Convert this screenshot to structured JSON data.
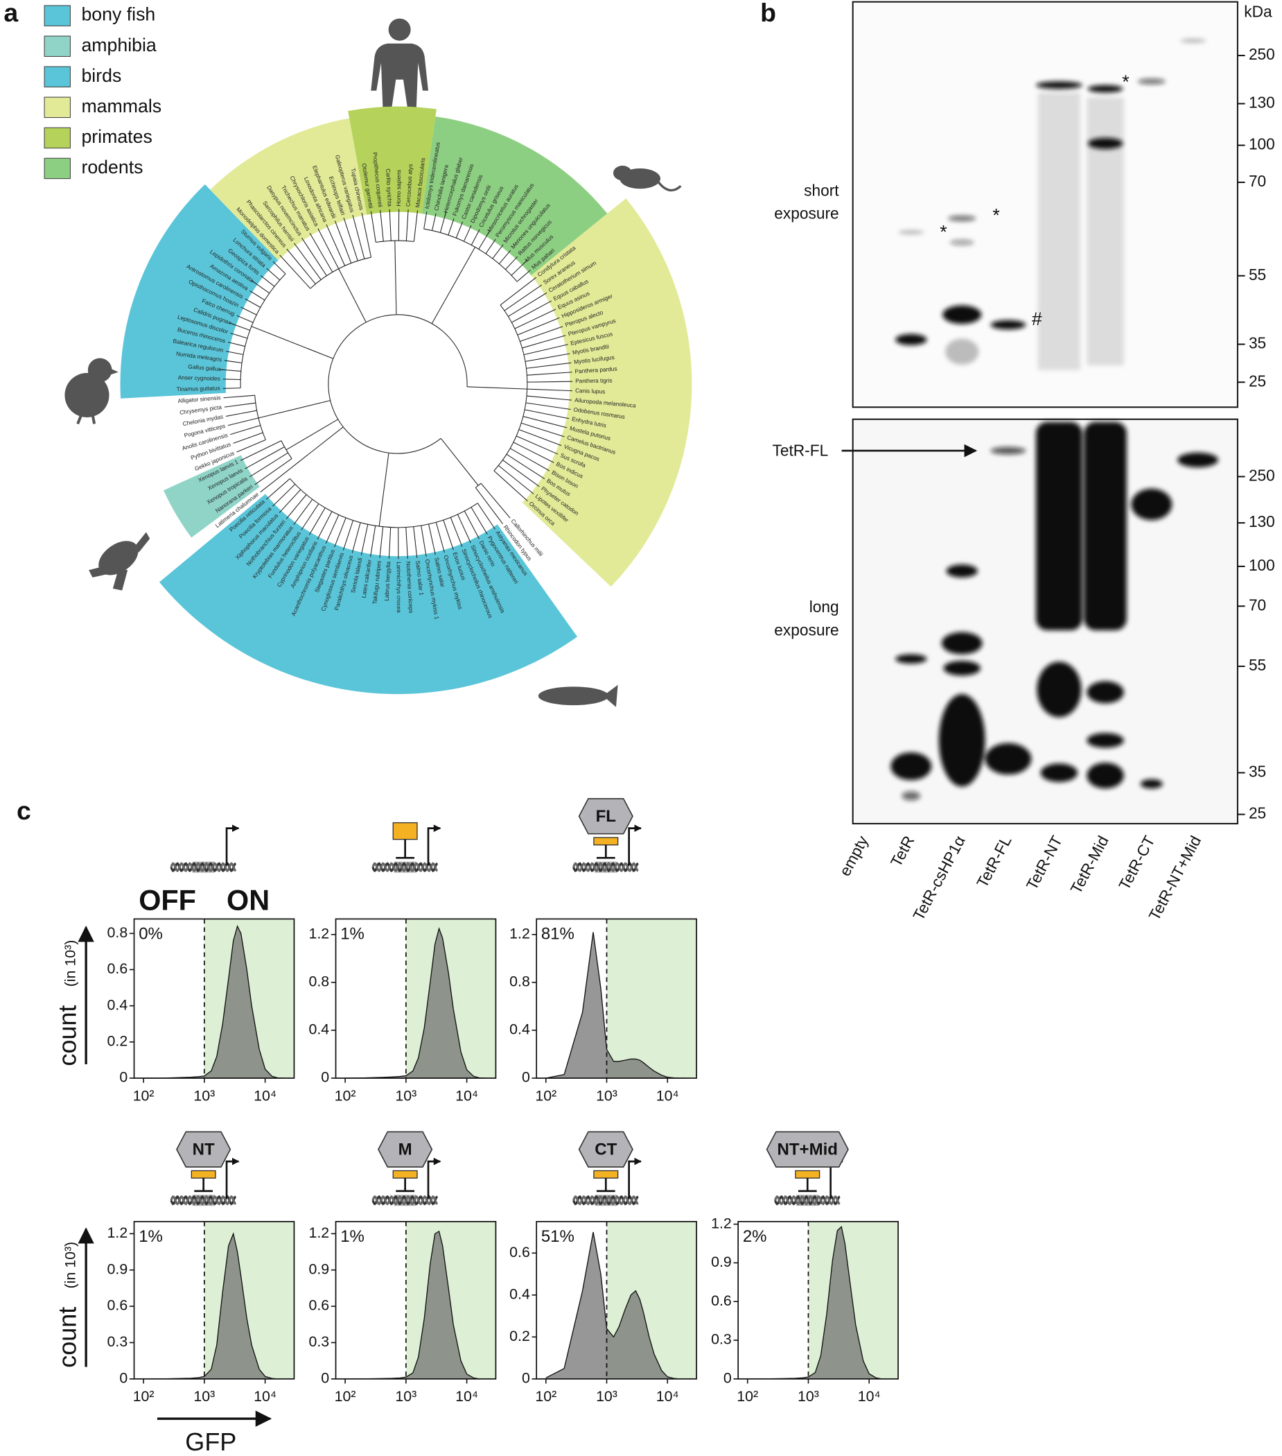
{
  "panel_labels": [
    "a",
    "b",
    "c"
  ],
  "tree": {
    "legend": [
      {
        "name": "bony fish",
        "color": "#5ac5d8"
      },
      {
        "name": "amphibia",
        "color": "#8fd4c7"
      },
      {
        "name": "birds",
        "color": "#5ac5d8"
      },
      {
        "name": "mammals",
        "color": "#e2ea97"
      },
      {
        "name": "primates",
        "color": "#b5d35a"
      },
      {
        "name": "rodents",
        "color": "#8dcf82"
      }
    ],
    "sections": [
      {
        "leaves": [
          "Callorhinchus milii",
          "Rhincodon typus"
        ]
      },
      {
        "clade": "bony fish",
        "leaves": [
          "Astyanax mexicanus",
          "Pygocentrus nattereri",
          "Danio rerio",
          "Sinocyclocheilus anshuiensis",
          "Sinocyclocheilus rhinocerous",
          "Esox lucius",
          "Oncorhynchus mykiss",
          "Salmo salar",
          "Oncorhynchus mykiss 1",
          "Salmo salar 1",
          "Notothenia coriiceps",
          "Larimichthys crocea",
          "Labrus bergylta",
          "Takifugu rubripes",
          "Lates calcarifer",
          "Seriola lalandi",
          "Paralichthys olivaceus",
          "Cynoglossus semilaevis",
          "Stegastes partitus",
          "Acanthochromis polyacanthus",
          "Amphiprion ocellaris",
          "Cyprinodon variegatus",
          "Fundulus heteroclitus",
          "Kryptolebias marmoratus",
          "Nothobranchius furzeri",
          "Xiphophorus maculatus",
          "Poecilia formosa",
          "Poecilia reticulata"
        ]
      },
      {
        "leaves": [
          "Latimeria chalumnae"
        ]
      },
      {
        "clade": "amphibia",
        "leaves": [
          "Nanorana parkeri",
          "Xenopus tropicalis",
          "Xenopus laevis",
          "Xenopus laevis 1"
        ]
      },
      {
        "leaves": [
          "Gekko japonicus",
          "Python bivittatus",
          "Anolis carolinensis",
          "Pogona vitticeps",
          "Chelonia mydas",
          "Chrysemys picta",
          "Alligator sinensis"
        ]
      },
      {
        "clade": "birds",
        "leaves": [
          "Tinamus guttatus",
          "Anser cygnoides",
          "Gallus gallus",
          "Numida meleagris",
          "Balearica regulorum",
          "Buceros rhinoceros",
          "Leptosomus discolor",
          "Calidris pugnax",
          "Falco cherrug",
          "Opisthocomus hoazin",
          "Antrostomus carolinensis",
          "Amazona aestiva",
          "Lepidothrix coronata",
          "Geospiza fortis",
          "Lonchura striata",
          "Sturnus vulgaris"
        ]
      },
      {
        "clade": "mammals",
        "leaves": [
          "Monodelphis domestica",
          "Phascolarctos cinereus",
          "Sarcophilus harrisii",
          "Dasypus novemcinctus",
          "Trichechus manatus",
          "Chrysochloris asiatica",
          "Loxodonta africana",
          "Elephantulus edwardii",
          "Echinops telfairi",
          "Galeopterus variegatus",
          "Tupaia chinensis"
        ]
      },
      {
        "clade": "primates",
        "leaves": [
          "Otolemur garnettii",
          "Propithecus coquereli",
          "Carlito syrichta",
          "Homo sapiens",
          "Cercocebus atys",
          "Macaca fascicularis"
        ]
      },
      {
        "clade": "rodents",
        "leaves": [
          "Ictidomys tridecemlineatus",
          "Chinchilla lanigera",
          "Heterocephalus glaber",
          "Fukomys damarensis",
          "Castor canadensis",
          "Dipodomys ordii",
          "Cricetulus griseus",
          "Mesocricetus auratus",
          "Peromyscus maniculatus",
          "Microtus ochrogaster",
          "Meriones unguiculatus",
          "Rattus norvegicus",
          "Mus musculus",
          "Mus pahari"
        ]
      },
      {
        "clade": "mammals",
        "leaves": [
          "Condylura cristata",
          "Sorex araneus",
          "Ceratotherium simum",
          "Equus caballus",
          "Equus asinus",
          "Hipposideros armiger",
          "Pteropus alecto",
          "Pteropus vampyrus",
          "Eptesicus fuscus",
          "Myotis brandtii",
          "Myotis lucifugus",
          "Panthera pardus",
          "Panthera tigris",
          "Canis lupus",
          "Ailuropoda melanoleuca",
          "Odobenus rosmarus",
          "Enhydra lutris",
          "Mustela putorius",
          "Camelus bactrianus",
          "Vicugna pacos",
          "Sus scrofa",
          "Bos indicus",
          "Bison bison",
          "Bos mutus",
          "Physeter catodon",
          "Lipotes vexillifer",
          "Orcinus orca"
        ]
      }
    ]
  },
  "blot": {
    "unit": "kDa",
    "lanes": [
      "empty",
      "TetR",
      "TetR-csHP1α",
      "TetR-FL",
      "TetR-NT",
      "TetR-Mid",
      "TetR-CT",
      "TetR-NT+Mid"
    ],
    "exposures": [
      {
        "label": [
          "short",
          "exposure"
        ],
        "markers": [
          250,
          130,
          100,
          70,
          55,
          35,
          25
        ]
      },
      {
        "label": [
          "long",
          "exposure"
        ],
        "markers": [
          250,
          130,
          100,
          70,
          55,
          35,
          25
        ]
      }
    ],
    "arrow_label": "TetR-FL",
    "annotations": [
      "*",
      "*",
      "#",
      "*"
    ]
  },
  "c_labels": {
    "states": [
      "OFF",
      "ON"
    ],
    "ylabel": "count",
    "ylabel_unit": "(in 10³)",
    "xlabel": "GFP"
  },
  "chart_data": [
    {
      "type": "area",
      "xscale": "log",
      "color": "#6f6f6f",
      "shade_color": "#ddf0d5",
      "gate": 1000,
      "annotation": "0%",
      "x": [
        100,
        200,
        400,
        600,
        800,
        1000,
        1300,
        1600,
        2000,
        2500,
        3000,
        3500,
        4000,
        5000,
        6000,
        8000,
        10000,
        13000,
        16000,
        20000
      ],
      "values": [
        0,
        0,
        0.003,
        0.005,
        0.008,
        0.012,
        0.04,
        0.12,
        0.3,
        0.55,
        0.76,
        0.84,
        0.8,
        0.6,
        0.4,
        0.16,
        0.05,
        0.01,
        0.002,
        0
      ],
      "xlim": [
        70,
        30000
      ],
      "xticks": [
        {
          "value": 100,
          "label": "10²"
        },
        {
          "value": 1000,
          "label": "10³"
        },
        {
          "value": 10000,
          "label": "10⁴"
        }
      ],
      "ylim": [
        0,
        0.88
      ],
      "yticks": [
        0,
        0.2,
        0.4,
        0.6,
        0.8
      ]
    },
    {
      "type": "area",
      "xscale": "log",
      "color": "#6f6f6f",
      "shade_color": "#ddf0d5",
      "gate": 1000,
      "annotation": "1%",
      "tetr": true,
      "x": [
        100,
        200,
        400,
        600,
        800,
        1000,
        1300,
        1600,
        2000,
        2500,
        3000,
        3500,
        4000,
        5000,
        6000,
        8000,
        10000,
        13000,
        16000,
        20000
      ],
      "values": [
        0,
        0.002,
        0.006,
        0.01,
        0.014,
        0.02,
        0.06,
        0.17,
        0.42,
        0.8,
        1.12,
        1.25,
        1.17,
        0.88,
        0.58,
        0.22,
        0.07,
        0.015,
        0.003,
        0
      ],
      "xlim": [
        70,
        30000
      ],
      "xticks": [
        {
          "value": 100,
          "label": "10²"
        },
        {
          "value": 1000,
          "label": "10³"
        },
        {
          "value": 10000,
          "label": "10⁴"
        }
      ],
      "ylim": [
        0,
        1.33
      ],
      "yticks": [
        0,
        0.4,
        0.8,
        1.2
      ]
    },
    {
      "type": "area",
      "xscale": "log",
      "color": "#6f6f6f",
      "shade_color": "#ddf0d5",
      "gate": 1000,
      "annotation": "81%",
      "tetr": true,
      "construct": "FL",
      "x": [
        100,
        200,
        400,
        600,
        800,
        1000,
        1300,
        1600,
        2000,
        2500,
        3000,
        3500,
        4000,
        5000,
        6000,
        8000,
        10000,
        13000,
        16000,
        20000
      ],
      "values": [
        0,
        0.03,
        0.55,
        1.22,
        0.75,
        0.24,
        0.14,
        0.14,
        0.15,
        0.16,
        0.16,
        0.15,
        0.13,
        0.09,
        0.06,
        0.025,
        0.008,
        0.002,
        0,
        0
      ],
      "xlim": [
        70,
        30000
      ],
      "xticks": [
        {
          "value": 100,
          "label": "10²"
        },
        {
          "value": 1000,
          "label": "10³"
        },
        {
          "value": 10000,
          "label": "10⁴"
        }
      ],
      "ylim": [
        0,
        1.33
      ],
      "yticks": [
        0,
        0.4,
        0.8,
        1.2
      ]
    },
    {
      "type": "area",
      "xscale": "log",
      "color": "#6f6f6f",
      "shade_color": "#ddf0d5",
      "gate": 1000,
      "annotation": "1%",
      "tetr": true,
      "construct": "NT",
      "x": [
        100,
        200,
        400,
        600,
        800,
        1000,
        1300,
        1600,
        2000,
        2500,
        3000,
        3500,
        4000,
        5000,
        6000,
        8000,
        10000,
        13000,
        16000,
        20000
      ],
      "values": [
        0,
        0,
        0.004,
        0.006,
        0.01,
        0.02,
        0.08,
        0.28,
        0.72,
        1.1,
        1.2,
        1.05,
        0.85,
        0.5,
        0.28,
        0.08,
        0.02,
        0.004,
        0,
        0
      ],
      "xlim": [
        70,
        30000
      ],
      "xticks": [
        {
          "value": 100,
          "label": "10²"
        },
        {
          "value": 1000,
          "label": "10³"
        },
        {
          "value": 10000,
          "label": "10⁴"
        }
      ],
      "ylim": [
        0,
        1.3
      ],
      "yticks": [
        0,
        0.3,
        0.6,
        0.9,
        1.2
      ]
    },
    {
      "type": "area",
      "xscale": "log",
      "color": "#6f6f6f",
      "shade_color": "#ddf0d5",
      "gate": 1000,
      "annotation": "1%",
      "tetr": true,
      "construct": "M",
      "x": [
        100,
        200,
        400,
        600,
        800,
        1000,
        1300,
        1600,
        2000,
        2500,
        3000,
        3500,
        4000,
        5000,
        6000,
        8000,
        10000,
        13000,
        16000,
        20000
      ],
      "values": [
        0,
        0,
        0.003,
        0.005,
        0.008,
        0.015,
        0.05,
        0.18,
        0.5,
        0.95,
        1.2,
        1.22,
        1.1,
        0.75,
        0.45,
        0.15,
        0.04,
        0.008,
        0,
        0
      ],
      "xlim": [
        70,
        30000
      ],
      "xticks": [
        {
          "value": 100,
          "label": "10²"
        },
        {
          "value": 1000,
          "label": "10³"
        },
        {
          "value": 10000,
          "label": "10⁴"
        }
      ],
      "ylim": [
        0,
        1.3
      ],
      "yticks": [
        0,
        0.3,
        0.6,
        0.9,
        1.2
      ]
    },
    {
      "type": "area",
      "xscale": "log",
      "color": "#6f6f6f",
      "shade_color": "#ddf0d5",
      "gate": 1000,
      "annotation": "51%",
      "tetr": true,
      "construct": "CT",
      "x": [
        100,
        200,
        400,
        600,
        800,
        1000,
        1300,
        1600,
        2000,
        2500,
        3000,
        3500,
        4000,
        5000,
        6000,
        8000,
        10000,
        13000,
        16000,
        20000
      ],
      "values": [
        0.005,
        0.05,
        0.42,
        0.7,
        0.5,
        0.24,
        0.2,
        0.25,
        0.33,
        0.4,
        0.42,
        0.38,
        0.32,
        0.2,
        0.12,
        0.04,
        0.01,
        0.002,
        0,
        0
      ],
      "xlim": [
        70,
        30000
      ],
      "xticks": [
        {
          "value": 100,
          "label": "10²"
        },
        {
          "value": 1000,
          "label": "10³"
        },
        {
          "value": 10000,
          "label": "10⁴"
        }
      ],
      "ylim": [
        0,
        0.75
      ],
      "yticks": [
        0,
        0.2,
        0.4,
        0.6
      ]
    },
    {
      "type": "area",
      "xscale": "log",
      "color": "#6f6f6f",
      "shade_color": "#ddf0d5",
      "gate": 1000,
      "annotation": "2%",
      "tetr": true,
      "construct": "NT+Mid",
      "x": [
        100,
        200,
        400,
        600,
        800,
        1000,
        1300,
        1600,
        2000,
        2500,
        3000,
        3500,
        4000,
        5000,
        6000,
        8000,
        10000,
        13000,
        16000,
        20000
      ],
      "values": [
        0,
        0,
        0.003,
        0.005,
        0.008,
        0.015,
        0.05,
        0.18,
        0.5,
        0.92,
        1.15,
        1.18,
        1.05,
        0.7,
        0.42,
        0.14,
        0.04,
        0.008,
        0,
        0
      ],
      "xlim": [
        70,
        30000
      ],
      "xticks": [
        {
          "value": 100,
          "label": "10²"
        },
        {
          "value": 1000,
          "label": "10³"
        },
        {
          "value": 10000,
          "label": "10⁴"
        }
      ],
      "ylim": [
        0,
        1.22
      ],
      "yticks": [
        0,
        0.3,
        0.6,
        0.9,
        1.2
      ]
    }
  ]
}
